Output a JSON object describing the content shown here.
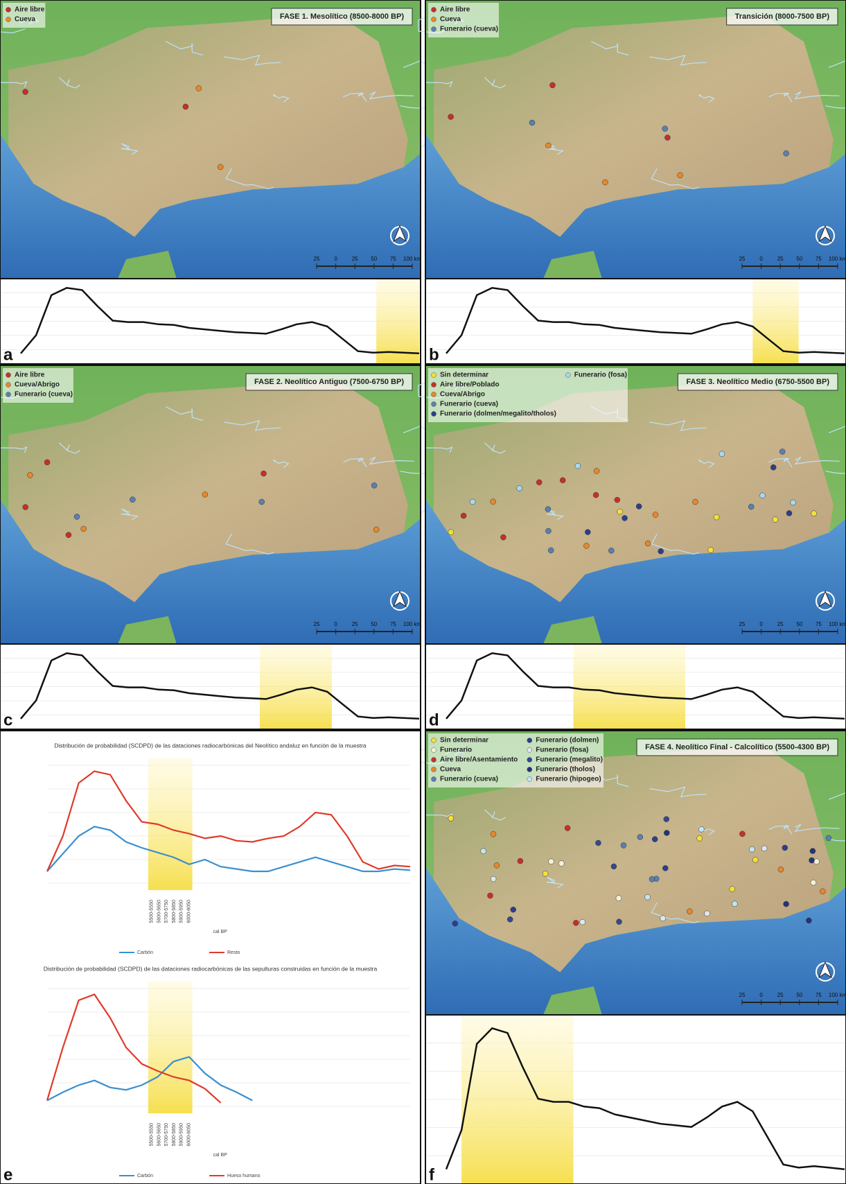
{
  "map_panels": [
    {
      "letter": "a",
      "title": "FASE 1. Mesolítico (8500-8000 BP)",
      "legend": [
        {
          "label": "Aire libre",
          "color": "#c62f2f"
        },
        {
          "label": "Cueva",
          "color": "#e8872c"
        }
      ],
      "highlight": [
        23.2,
        26
      ]
    },
    {
      "letter": "b",
      "title": "Transición (8000-7500 BP)",
      "legend": [
        {
          "label": "Aire libre",
          "color": "#c62f2f"
        },
        {
          "label": "Cueva",
          "color": "#e8872c"
        },
        {
          "label": "Funerario (cueva)",
          "color": "#5b7fb0"
        }
      ],
      "highlight": [
        20,
        23
      ]
    },
    {
      "letter": "c",
      "title": "FASE 2. Neolítico Antiguo (7500-6750 BP)",
      "legend": [
        {
          "label": "Aire libre",
          "color": "#c62f2f"
        },
        {
          "label": "Cueva/Abrigo",
          "color": "#e8872c"
        },
        {
          "label": "Funerario (cueva)",
          "color": "#5b7fb0"
        }
      ],
      "highlight": [
        15.6,
        20.3
      ]
    },
    {
      "letter": "d",
      "title": "FASE 3. Neolítico Medio (6750-5500 BP)",
      "legend": [
        {
          "label": "Sin determinar",
          "color": "#f3e03a"
        },
        {
          "label": "Aire libre/Poblado",
          "color": "#c62f2f"
        },
        {
          "label": "Cueva/Abrigo",
          "color": "#e8872c"
        },
        {
          "label": "Funerario (cueva)",
          "color": "#5b7fb0"
        },
        {
          "label": "Funerario (dolmen/megalito/tholos)",
          "color": "#2c3f8c"
        },
        {
          "label": "Funerario (fosa)",
          "color": "#a8d8f0"
        }
      ],
      "highlight": [
        8.3,
        15.6
      ]
    },
    {
      "letter": "f",
      "title": "FASE 4. Neolítico Final - Calcolítico (5500-4300 BP)",
      "legend": [
        {
          "label": "Sin determinar",
          "color": "#f3e03a"
        },
        {
          "label": "Funerario",
          "color": "#f4f1d8"
        },
        {
          "label": "Aire libre/Asentamiento",
          "color": "#c62f2f"
        },
        {
          "label": "Cueva",
          "color": "#e8872c"
        },
        {
          "label": "Funerario (cueva)",
          "color": "#5b7fb0"
        },
        {
          "label": "Funerario (dolmen)",
          "color": "#2c3f8c"
        },
        {
          "label": "Funerario (fosa)",
          "color": "#dfe6f0"
        },
        {
          "label": "Funerario (megalito)",
          "color": "#34498f"
        },
        {
          "label": "Funerario (tholos)",
          "color": "#243478"
        },
        {
          "label": "Funerario (hipogeo)",
          "color": "#bfe6f5"
        }
      ],
      "highlight": [
        1,
        8.3
      ]
    }
  ],
  "scale_bar": [
    "25",
    "0",
    "25",
    "50",
    "75",
    "100 km"
  ],
  "spd_curve": [
    5,
    30,
    85,
    95,
    92,
    70,
    50,
    48,
    48,
    45,
    44,
    40,
    38,
    36,
    34,
    33,
    32,
    38,
    45,
    48,
    42,
    25,
    8,
    6,
    7,
    6,
    5
  ],
  "panel_e": {
    "letter": "e",
    "charts": [
      {
        "title": "Distribución de probabilidad (SCDPD) de las dataciones radiocarbónicas del Neolítico andaluz en función de la muestra",
        "series": [
          {
            "name": "Carbón",
            "color": "#3a8fd0",
            "values": [
              10,
              25,
              40,
              48,
              45,
              35,
              30,
              26,
              22,
              16,
              20,
              14,
              12,
              10,
              10,
              14,
              18,
              22,
              18,
              14,
              10,
              10,
              12,
              11
            ]
          },
          {
            "name": "Resto",
            "color": "#e03a2a",
            "values": [
              10,
              40,
              85,
              95,
              92,
              70,
              52,
              50,
              45,
              42,
              38,
              40,
              36,
              35,
              38,
              40,
              48,
              60,
              58,
              40,
              18,
              12,
              15,
              14
            ]
          }
        ],
        "x_labels": [
          "5500-5550",
          "5600-5650",
          "5700-5750",
          "5800-5850",
          "5900-5950",
          "6000-6050"
        ],
        "x_axis_label": "cal BP",
        "highlight": [
          6.4,
          9.2
        ]
      },
      {
        "title": "Distribución de probabilidad (SCDPD) de las dataciones radiocarbónicas de las sepulturas construidas en función de la muestra",
        "series": [
          {
            "name": "Carbón",
            "color": "#3a8fd0",
            "values": [
              5,
              12,
              18,
              22,
              16,
              14,
              18,
              25,
              38,
              42,
              28,
              18,
              12,
              5,
              null,
              null,
              null,
              null,
              null,
              null,
              null,
              null,
              null,
              null
            ]
          },
          {
            "name": "Hueso humano",
            "color": "#e03a2a",
            "values": [
              5,
              50,
              90,
              95,
              75,
              50,
              36,
              30,
              25,
              22,
              15,
              3,
              null,
              null,
              null,
              null,
              null,
              null,
              null,
              null,
              null,
              null,
              null,
              null
            ]
          }
        ],
        "x_labels": [
          "5500-5550",
          "5600-5650",
          "5700-5750",
          "5800-5850",
          "5900-5950",
          "6000-6050"
        ],
        "x_axis_label": "cal BP",
        "highlight": [
          6.4,
          9.2
        ]
      }
    ]
  }
}
